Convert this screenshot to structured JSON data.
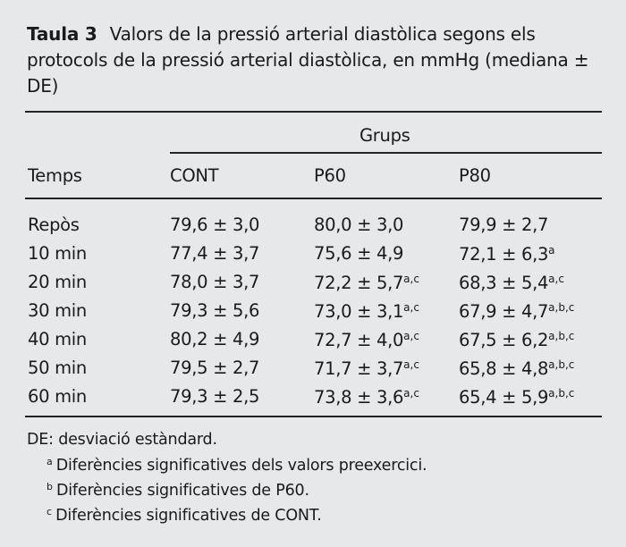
{
  "caption": {
    "label": "Taula 3",
    "text": "Valors de la pressió arterial diastòlica segons els protocols de la pressió arterial diastòlica, en mmHg (mediana ± DE)"
  },
  "table": {
    "group_header": "Grups",
    "columns": [
      "Temps",
      "CONT",
      "P60",
      "P80"
    ],
    "rows": [
      {
        "time": "Repòs",
        "cells": [
          {
            "v": "79,6 ± 3,0",
            "s": ""
          },
          {
            "v": "80,0 ± 3,0",
            "s": ""
          },
          {
            "v": "79,9 ± 2,7",
            "s": ""
          }
        ]
      },
      {
        "time": "10 min",
        "cells": [
          {
            "v": "77,4 ± 3,7",
            "s": ""
          },
          {
            "v": "75,6 ± 4,9",
            "s": ""
          },
          {
            "v": "72,1 ± 6,3",
            "s": "a"
          }
        ]
      },
      {
        "time": "20 min",
        "cells": [
          {
            "v": "78,0 ± 3,7",
            "s": ""
          },
          {
            "v": "72,2 ± 5,7",
            "s": "a,c"
          },
          {
            "v": "68,3 ± 5,4",
            "s": "a,c"
          }
        ]
      },
      {
        "time": "30 min",
        "cells": [
          {
            "v": "79,3 ± 5,6",
            "s": ""
          },
          {
            "v": "73,0 ± 3,1",
            "s": "a,c"
          },
          {
            "v": "67,9 ± 4,7",
            "s": "a,b,c"
          }
        ]
      },
      {
        "time": "40 min",
        "cells": [
          {
            "v": "80,2 ± 4,9",
            "s": ""
          },
          {
            "v": "72,7 ± 4,0",
            "s": "a,c"
          },
          {
            "v": "67,5 ± 6,2",
            "s": "a,b,c"
          }
        ]
      },
      {
        "time": "50 min",
        "cells": [
          {
            "v": "79,5 ± 2,7",
            "s": ""
          },
          {
            "v": "71,7 ± 3,7",
            "s": "a,c"
          },
          {
            "v": "65,8 ± 4,8",
            "s": "a,b,c"
          }
        ]
      },
      {
        "time": "60 min",
        "cells": [
          {
            "v": "79,3 ± 2,5",
            "s": ""
          },
          {
            "v": "73,8 ± 3,6",
            "s": "a,c"
          },
          {
            "v": "65,4 ± 5,9",
            "s": "a,b,c"
          }
        ]
      }
    ]
  },
  "footnotes": {
    "abbrev": "DE: desviació estàndard.",
    "notes": [
      {
        "mark": "a",
        "text": "Diferències significatives dels valors preexercici."
      },
      {
        "mark": "b",
        "text": "Diferències significatives de P60."
      },
      {
        "mark": "c",
        "text": "Diferències significatives de CONT."
      }
    ]
  },
  "colors": {
    "background": "#e7e8ea",
    "text": "#1a1a1a",
    "rule": "#222222"
  }
}
